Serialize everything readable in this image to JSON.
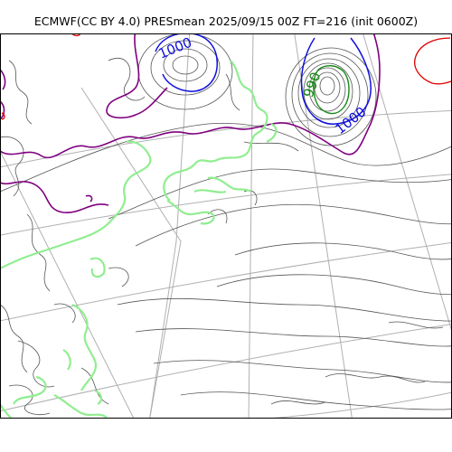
{
  "title": "ECMWF(CC BY 4.0) PRESmean 2025/09/15 00Z FT=216 (init 0600Z)",
  "colors": {
    "isobar": "#555555",
    "isobar_1000": "#1010e0",
    "isobar_990": "#1a8a1a",
    "purple_line": "#800080",
    "coastline": "#90ee90",
    "red_contour": "#e00000",
    "graticule": "#b0b0b0"
  },
  "contour_labels": {
    "label_1000_west": "1000",
    "label_990": "990",
    "label_1000_east": "1000"
  }
}
